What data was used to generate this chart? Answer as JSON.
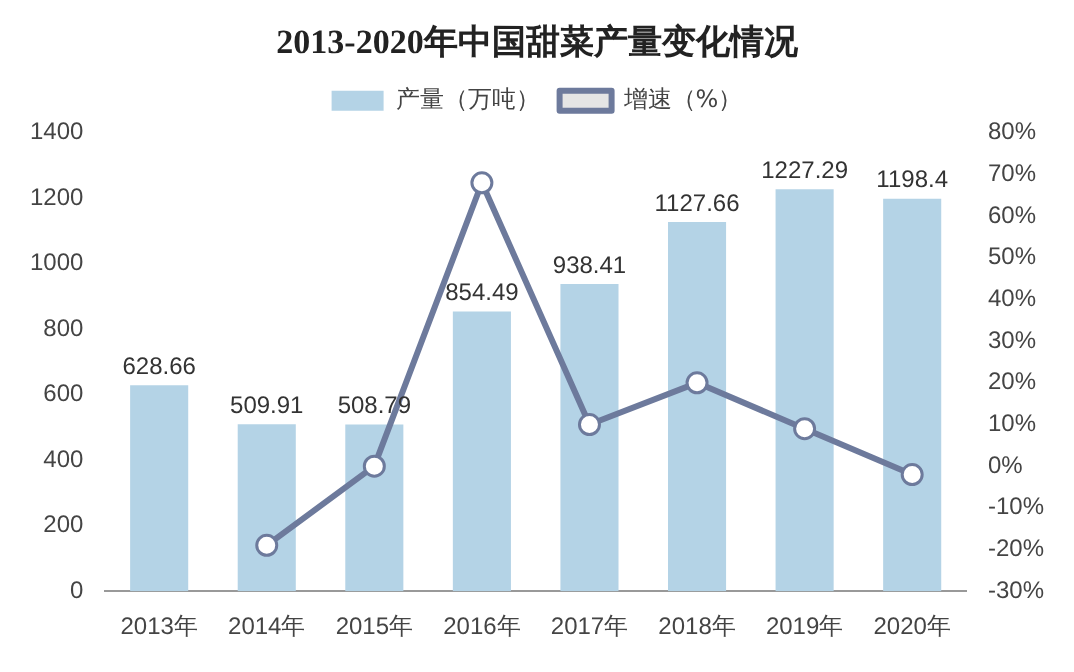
{
  "chart_data": {
    "type": "bar",
    "title": "2013-2020年中国甜菜产量变化情况",
    "categories": [
      "2013年",
      "2014年",
      "2015年",
      "2016年",
      "2017年",
      "2018年",
      "2019年",
      "2020年"
    ],
    "series": [
      {
        "name": "产量（万吨）",
        "color": "#b4d3e6",
        "values": [
          628.66,
          509.91,
          508.79,
          854.49,
          938.41,
          1127.66,
          1227.29,
          1198.4
        ],
        "value_labels": [
          "628.66",
          "509.91",
          "508.79",
          "854.49",
          "938.41",
          "1127.66",
          "1227.29",
          "1198.4"
        ]
      },
      {
        "name": "增速（%）",
        "type": "line",
        "axis": "y2",
        "color": "#6d7a9c",
        "values": [
          null,
          -19,
          0,
          68,
          10,
          20,
          9,
          -2
        ]
      }
    ],
    "ylim": [
      0,
      1400
    ],
    "yticks": [
      0,
      200,
      400,
      600,
      800,
      1000,
      1200,
      1400
    ],
    "y2lim": [
      -30,
      80
    ],
    "y2ticks": [
      {
        "value": -30,
        "label": "-30%"
      },
      {
        "value": -20,
        "label": "-20%"
      },
      {
        "value": -10,
        "label": "-10%"
      },
      {
        "value": 0,
        "label": "0%"
      },
      {
        "value": 10,
        "label": "10%"
      },
      {
        "value": 20,
        "label": "20%"
      },
      {
        "value": 30,
        "label": "30%"
      },
      {
        "value": 40,
        "label": "40%"
      },
      {
        "value": 50,
        "label": "50%"
      },
      {
        "value": 60,
        "label": "60%"
      },
      {
        "value": 70,
        "label": "70%"
      },
      {
        "value": 80,
        "label": "80%"
      }
    ],
    "legend": "top",
    "grid": false,
    "marker": "circle",
    "line_style": "solid"
  }
}
